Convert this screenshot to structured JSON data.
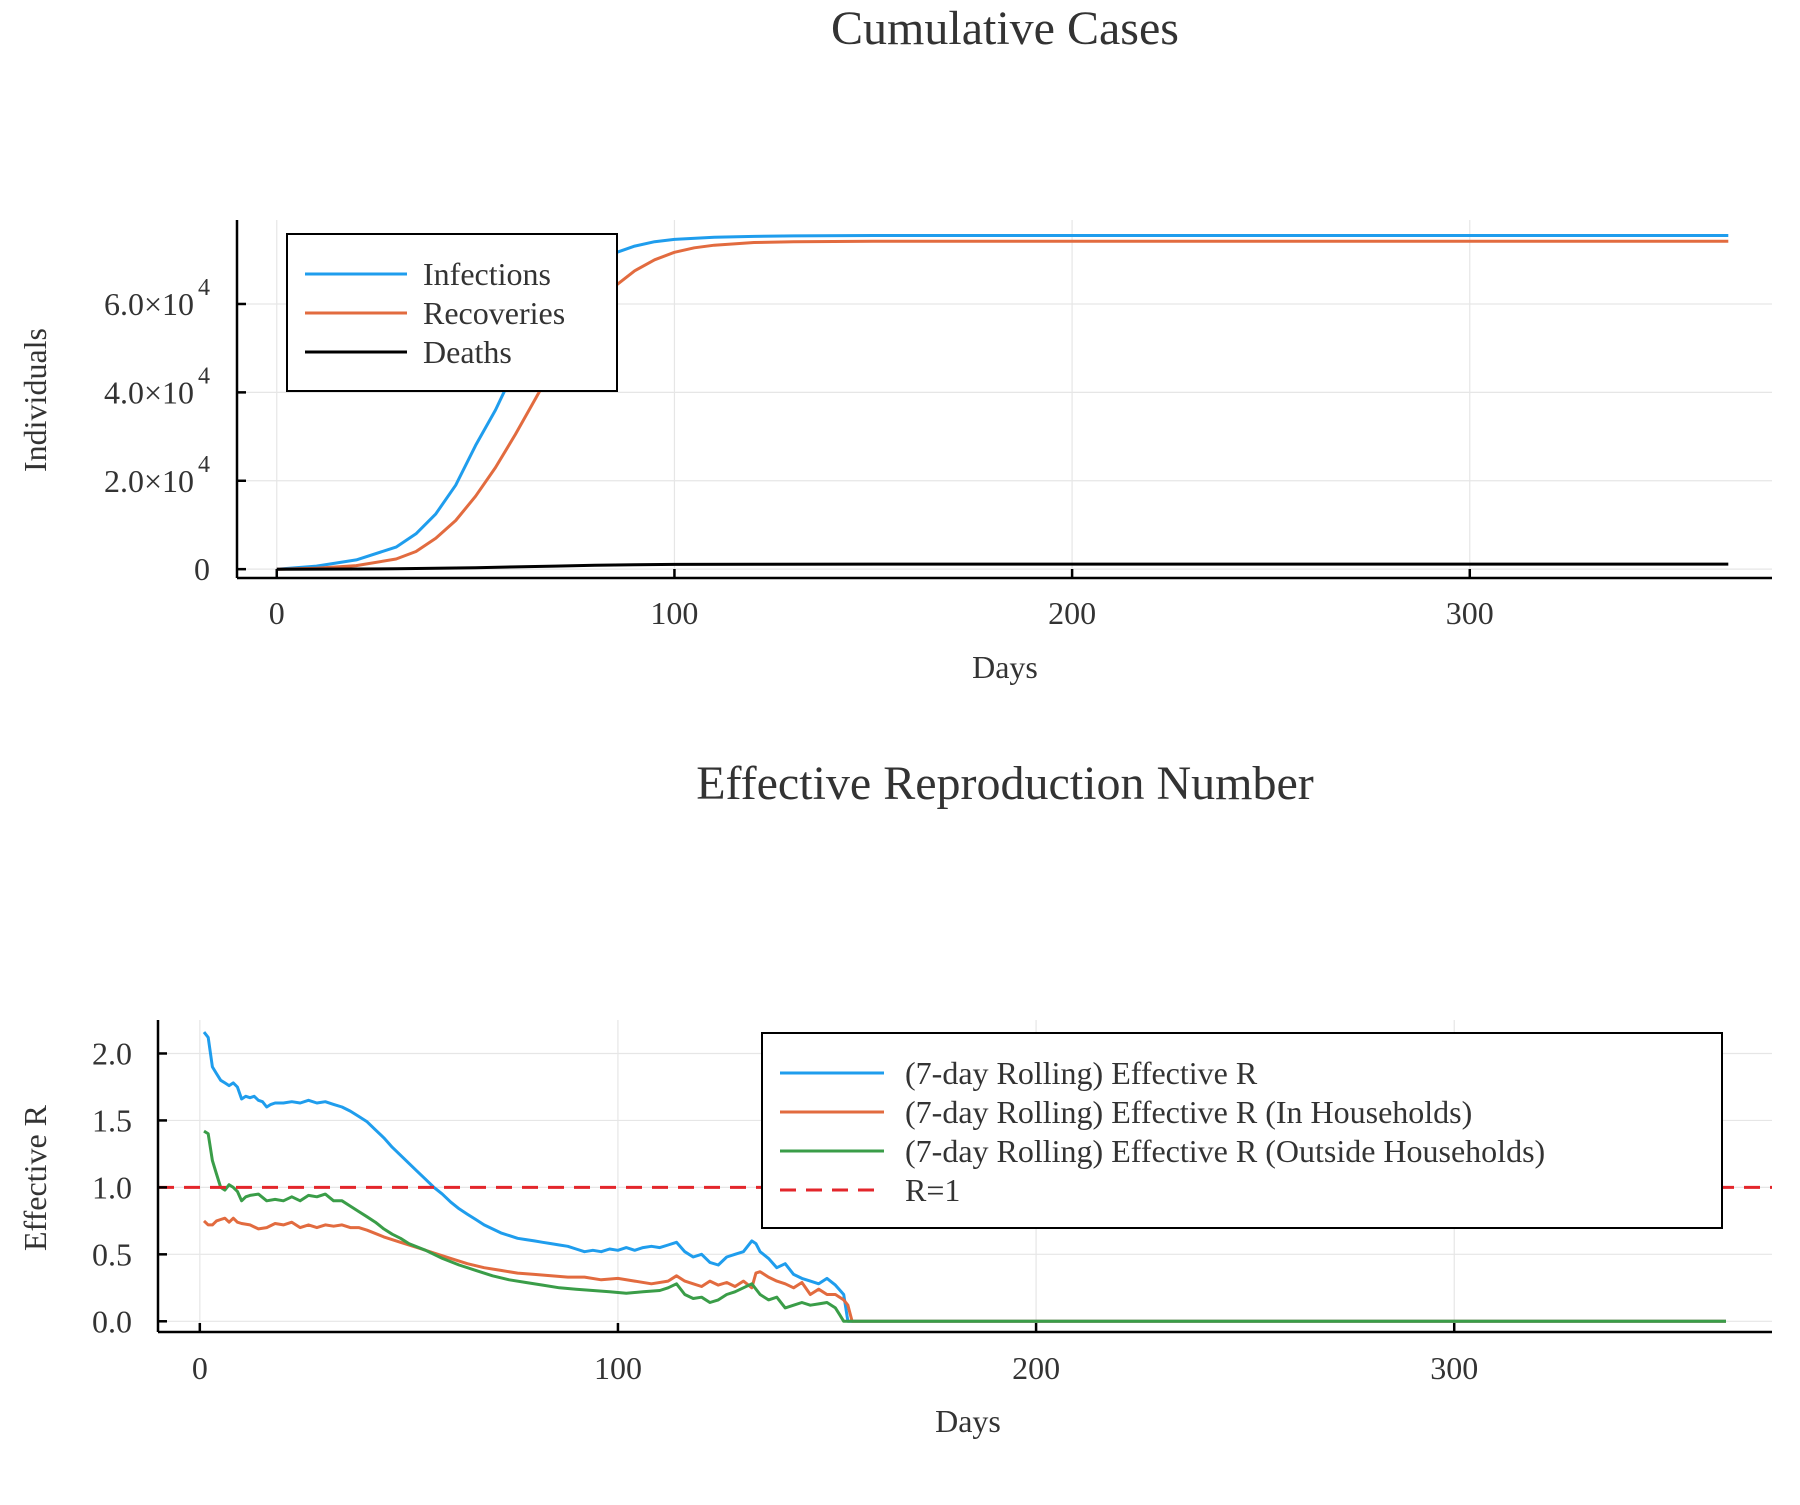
{
  "chart_data": [
    {
      "type": "line",
      "title": "Cumulative Cases",
      "xlabel": "Days",
      "ylabel": "Individuals",
      "xlim": [
        -10,
        376
      ],
      "ylim": [
        -2000,
        79000
      ],
      "xticks": [
        0,
        100,
        200,
        300
      ],
      "xtick_labels": [
        "0",
        "100",
        "200",
        "300"
      ],
      "yticks": [
        0,
        20000,
        40000,
        60000
      ],
      "ytick_labels": [
        {
          "mantissa": "0",
          "exponent": ""
        },
        {
          "mantissa": "2.0×10",
          "exponent": "4"
        },
        {
          "mantissa": "4.0×10",
          "exponent": "4"
        },
        {
          "mantissa": "6.0×10",
          "exponent": "4"
        }
      ],
      "grid": true,
      "legend_position": "top-left",
      "series": [
        {
          "name": "Infections",
          "color": "#1f9ded",
          "x": [
            0,
            10,
            20,
            30,
            35,
            40,
            45,
            50,
            55,
            60,
            65,
            70,
            75,
            80,
            85,
            90,
            95,
            100,
            110,
            120,
            130,
            150,
            175,
            200,
            250,
            300,
            365
          ],
          "y": [
            0,
            700,
            2100,
            5000,
            8000,
            12500,
            19000,
            28000,
            36000,
            45500,
            54000,
            60500,
            65500,
            69000,
            71500,
            73100,
            74100,
            74600,
            75100,
            75300,
            75400,
            75500,
            75500,
            75500,
            75500,
            75500,
            75500
          ]
        },
        {
          "name": "Recoveries",
          "color": "#e26b3f",
          "x": [
            0,
            10,
            20,
            30,
            35,
            40,
            45,
            50,
            55,
            60,
            65,
            70,
            75,
            80,
            85,
            90,
            95,
            100,
            105,
            110,
            120,
            130,
            150,
            175,
            200,
            250,
            300,
            365
          ],
          "y": [
            0,
            200,
            800,
            2300,
            4000,
            7000,
            11000,
            16500,
            23000,
            30500,
            38500,
            46500,
            53500,
            59500,
            64000,
            67500,
            70000,
            71700,
            72700,
            73300,
            73900,
            74100,
            74200,
            74200,
            74200,
            74200,
            74200,
            74200
          ]
        },
        {
          "name": "Deaths",
          "color": "#000000",
          "x": [
            0,
            20,
            30,
            40,
            50,
            60,
            70,
            80,
            90,
            100,
            120,
            150,
            200,
            250,
            300,
            365
          ],
          "y": [
            0,
            30,
            90,
            190,
            330,
            520,
            700,
            880,
            1000,
            1080,
            1120,
            1140,
            1150,
            1150,
            1150,
            1150
          ]
        }
      ]
    },
    {
      "type": "line",
      "title": "Effective Reproduction Number",
      "xlabel": "Days",
      "ylabel": "Effective R",
      "xlim": [
        -10,
        376
      ],
      "ylim": [
        -0.08,
        2.25
      ],
      "xticks": [
        0,
        100,
        200,
        300
      ],
      "xtick_labels": [
        "0",
        "100",
        "200",
        "300"
      ],
      "yticks": [
        0,
        0.5,
        1.0,
        1.5,
        2.0
      ],
      "ytick_labels": [
        "0.0",
        "0.5",
        "1.0",
        "1.5",
        "2.0"
      ],
      "grid": true,
      "legend_position": "top-right",
      "series": [
        {
          "name": "(7-day Rolling) Effective R",
          "color": "#1f9ded",
          "x": [
            1,
            2,
            3,
            4,
            5,
            6,
            7,
            8,
            9,
            10,
            11,
            12,
            13,
            14,
            15,
            16,
            17,
            18,
            20,
            22,
            24,
            26,
            28,
            30,
            32,
            34,
            36,
            38,
            40,
            42,
            44,
            46,
            48,
            50,
            52,
            54,
            56,
            58,
            60,
            62,
            64,
            66,
            68,
            70,
            72,
            74,
            76,
            78,
            80,
            82,
            84,
            86,
            88,
            90,
            92,
            94,
            96,
            98,
            100,
            102,
            104,
            106,
            108,
            110,
            112,
            114,
            116,
            118,
            120,
            122,
            124,
            126,
            128,
            130,
            132,
            133,
            134,
            136,
            138,
            140,
            142,
            144,
            146,
            148,
            150,
            152,
            154,
            155,
            156,
            160,
            200,
            250,
            300,
            365
          ],
          "y": [
            2.16,
            2.12,
            1.9,
            1.85,
            1.8,
            1.78,
            1.76,
            1.78,
            1.75,
            1.66,
            1.68,
            1.67,
            1.68,
            1.65,
            1.64,
            1.6,
            1.62,
            1.63,
            1.63,
            1.64,
            1.63,
            1.65,
            1.63,
            1.64,
            1.62,
            1.6,
            1.57,
            1.53,
            1.49,
            1.43,
            1.37,
            1.3,
            1.24,
            1.18,
            1.12,
            1.06,
            1.0,
            0.95,
            0.89,
            0.84,
            0.8,
            0.76,
            0.72,
            0.69,
            0.66,
            0.64,
            0.62,
            0.61,
            0.6,
            0.59,
            0.58,
            0.57,
            0.56,
            0.54,
            0.52,
            0.53,
            0.52,
            0.54,
            0.53,
            0.55,
            0.53,
            0.55,
            0.56,
            0.55,
            0.57,
            0.59,
            0.52,
            0.48,
            0.5,
            0.44,
            0.42,
            0.48,
            0.5,
            0.52,
            0.6,
            0.58,
            0.52,
            0.47,
            0.4,
            0.43,
            0.35,
            0.32,
            0.3,
            0.28,
            0.32,
            0.27,
            0.2,
            0.0,
            0.0,
            0.0,
            0.0,
            0.0,
            0.0,
            0.0
          ]
        },
        {
          "name": "(7-day Rolling) Effective R (In Households)",
          "color": "#e26b3f",
          "x": [
            1,
            2,
            3,
            4,
            5,
            6,
            7,
            8,
            9,
            10,
            12,
            14,
            16,
            18,
            20,
            22,
            24,
            26,
            28,
            30,
            32,
            34,
            36,
            38,
            40,
            44,
            48,
            52,
            56,
            60,
            64,
            68,
            72,
            76,
            80,
            84,
            88,
            92,
            96,
            100,
            104,
            108,
            112,
            114,
            116,
            118,
            120,
            122,
            124,
            126,
            128,
            130,
            132,
            133,
            134,
            136,
            138,
            140,
            142,
            144,
            146,
            148,
            150,
            152,
            154,
            155,
            156,
            160,
            200,
            250,
            300,
            365
          ],
          "y": [
            0.75,
            0.72,
            0.72,
            0.75,
            0.76,
            0.77,
            0.74,
            0.77,
            0.74,
            0.73,
            0.72,
            0.69,
            0.7,
            0.73,
            0.72,
            0.74,
            0.7,
            0.72,
            0.7,
            0.72,
            0.71,
            0.72,
            0.7,
            0.7,
            0.68,
            0.63,
            0.59,
            0.55,
            0.51,
            0.47,
            0.43,
            0.4,
            0.38,
            0.36,
            0.35,
            0.34,
            0.33,
            0.33,
            0.31,
            0.32,
            0.3,
            0.28,
            0.3,
            0.34,
            0.3,
            0.28,
            0.26,
            0.3,
            0.27,
            0.29,
            0.26,
            0.3,
            0.25,
            0.36,
            0.37,
            0.33,
            0.3,
            0.28,
            0.25,
            0.29,
            0.2,
            0.24,
            0.2,
            0.2,
            0.16,
            0.12,
            0.0,
            0.0,
            0.0,
            0.0,
            0.0,
            0.0
          ]
        },
        {
          "name": "(7-day Rolling) Effective R (Outside Households)",
          "color": "#3a9d48",
          "x": [
            1,
            2,
            3,
            4,
            5,
            6,
            7,
            8,
            9,
            10,
            11,
            12,
            14,
            16,
            18,
            20,
            22,
            24,
            26,
            28,
            30,
            32,
            34,
            36,
            38,
            40,
            42,
            44,
            46,
            48,
            50,
            54,
            58,
            62,
            66,
            70,
            74,
            78,
            82,
            86,
            90,
            94,
            98,
            102,
            106,
            110,
            112,
            114,
            116,
            118,
            120,
            122,
            124,
            126,
            128,
            130,
            132,
            134,
            136,
            138,
            140,
            142,
            144,
            146,
            148,
            150,
            152,
            153,
            154,
            160,
            200,
            250,
            300,
            365
          ],
          "y": [
            1.42,
            1.4,
            1.2,
            1.1,
            1.0,
            0.98,
            1.02,
            1.0,
            0.97,
            0.9,
            0.93,
            0.94,
            0.95,
            0.9,
            0.91,
            0.9,
            0.93,
            0.9,
            0.94,
            0.93,
            0.95,
            0.9,
            0.9,
            0.86,
            0.82,
            0.78,
            0.74,
            0.69,
            0.65,
            0.62,
            0.58,
            0.53,
            0.47,
            0.42,
            0.38,
            0.34,
            0.31,
            0.29,
            0.27,
            0.25,
            0.24,
            0.23,
            0.22,
            0.21,
            0.22,
            0.23,
            0.25,
            0.28,
            0.2,
            0.17,
            0.18,
            0.14,
            0.16,
            0.2,
            0.22,
            0.25,
            0.28,
            0.2,
            0.16,
            0.18,
            0.1,
            0.12,
            0.14,
            0.12,
            0.13,
            0.14,
            0.1,
            0.05,
            0.0,
            0.0,
            0.0,
            0.0,
            0.0,
            0.0
          ]
        },
        {
          "name": "R=1",
          "color": "#e3262b",
          "dashed": true,
          "x": [
            -10,
            376
          ],
          "y": [
            1.0,
            1.0
          ]
        }
      ]
    }
  ]
}
